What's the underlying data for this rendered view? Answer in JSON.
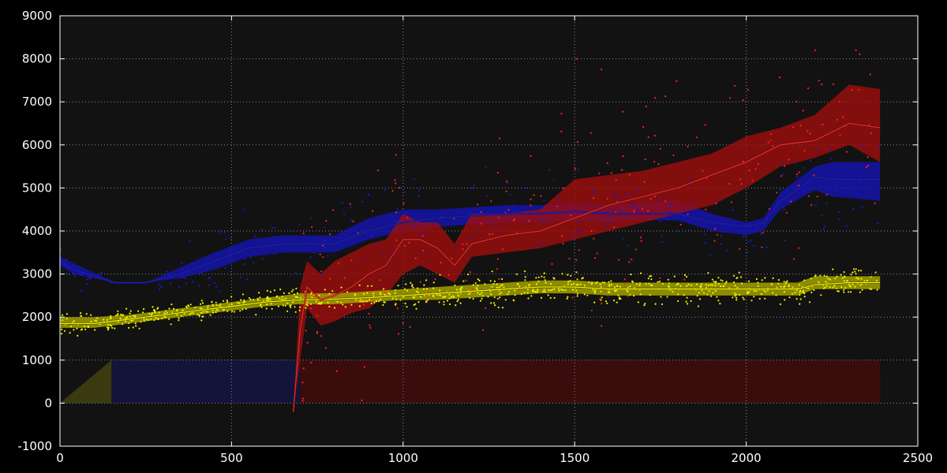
{
  "chart_data": {
    "type": "line",
    "title": "",
    "xlabel": "",
    "ylabel": "",
    "xlim": [
      0,
      2500
    ],
    "ylim": [
      -1000,
      9000
    ],
    "x_ticks": [
      0,
      500,
      1000,
      1500,
      2000,
      2500
    ],
    "y_ticks": [
      -1000,
      0,
      1000,
      2000,
      3000,
      4000,
      5000,
      6000,
      7000,
      8000,
      9000
    ],
    "grid": true,
    "legend": "none",
    "colors": {
      "background": "#000000",
      "plot_background": "#121212",
      "grid": "#8a8a8a",
      "text": "#ffffff",
      "yellow": "#f4f400",
      "yellow_band": "#a2a200",
      "blue": "#1a1ad8",
      "blue_band": "#1414b4",
      "red": "#ff2222",
      "red_band": "#a00e0e",
      "yellow_area": "#3a3a10",
      "blue_area": "#14143a",
      "red_area": "#3a0c0c"
    },
    "series": [
      {
        "color_key": "yellow",
        "x": [
          0,
          100,
          200,
          300,
          400,
          500,
          600,
          700,
          750,
          800,
          900,
          1000,
          1100,
          1200,
          1300,
          1400,
          1500,
          1600,
          1700,
          1800,
          1900,
          2000,
          2100,
          2150,
          2200,
          2300,
          2390
        ],
        "mean": [
          1850,
          1850,
          1950,
          2050,
          2150,
          2250,
          2350,
          2400,
          2400,
          2420,
          2450,
          2500,
          2550,
          2600,
          2650,
          2700,
          2700,
          2650,
          2650,
          2650,
          2650,
          2650,
          2650,
          2650,
          2750,
          2800,
          2800
        ],
        "lower": [
          1750,
          1750,
          1850,
          1950,
          2050,
          2150,
          2250,
          2300,
          2300,
          2300,
          2350,
          2400,
          2400,
          2450,
          2500,
          2550,
          2550,
          2500,
          2500,
          2500,
          2500,
          2500,
          2500,
          2500,
          2650,
          2650,
          2650
        ],
        "upper": [
          2000,
          2000,
          2050,
          2150,
          2250,
          2350,
          2450,
          2550,
          2550,
          2550,
          2600,
          2650,
          2700,
          2750,
          2800,
          2850,
          2850,
          2800,
          2800,
          2800,
          2800,
          2800,
          2800,
          2800,
          2950,
          2950,
          2950
        ]
      },
      {
        "color_key": "blue",
        "x": [
          0,
          40,
          160,
          250,
          350,
          450,
          550,
          650,
          800,
          900,
          1000,
          1100,
          1200,
          1300,
          1400,
          1500,
          1600,
          1700,
          1800,
          1900,
          2000,
          2050,
          2100,
          2200,
          2250,
          2390
        ],
        "mean": [
          3300,
          3100,
          2800,
          2800,
          3000,
          3300,
          3600,
          3700,
          3700,
          4000,
          4200,
          4300,
          4350,
          4400,
          4400,
          4450,
          4400,
          4400,
          4400,
          4200,
          4100,
          4200,
          4700,
          5250,
          5200,
          5200
        ],
        "lower": [
          3200,
          3000,
          2800,
          2800,
          2900,
          3100,
          3400,
          3500,
          3500,
          3800,
          4000,
          4100,
          4150,
          4200,
          4200,
          4250,
          4200,
          4250,
          4250,
          4000,
          3900,
          4000,
          4500,
          4950,
          4800,
          4700
        ],
        "upper": [
          3400,
          3250,
          2800,
          2800,
          3150,
          3500,
          3800,
          3900,
          3900,
          4300,
          4500,
          4500,
          4550,
          4600,
          4600,
          4650,
          4600,
          4650,
          4700,
          4400,
          4200,
          4300,
          4900,
          5500,
          5600,
          5600
        ]
      },
      {
        "color_key": "red",
        "x": [
          680,
          700,
          720,
          760,
          800,
          850,
          900,
          950,
          1000,
          1050,
          1100,
          1150,
          1200,
          1300,
          1400,
          1500,
          1600,
          1700,
          1800,
          1900,
          2000,
          2100,
          2200,
          2300,
          2390
        ],
        "mean": [
          -200,
          1700,
          2700,
          2400,
          2500,
          2700,
          3000,
          3200,
          3800,
          3800,
          3600,
          3200,
          3700,
          3900,
          4000,
          4300,
          4600,
          4800,
          5000,
          5300,
          5600,
          6000,
          6100,
          6500,
          6400
        ],
        "lower": [
          -200,
          1000,
          2200,
          1800,
          1900,
          2100,
          2200,
          2500,
          3000,
          3200,
          3000,
          2800,
          3400,
          3500,
          3600,
          3800,
          4000,
          4200,
          4400,
          4600,
          5000,
          5500,
          5700,
          6000,
          5600
        ],
        "upper": [
          -200,
          2700,
          3300,
          3000,
          3300,
          3500,
          3700,
          3800,
          4400,
          4200,
          4200,
          3700,
          4400,
          4400,
          4500,
          5200,
          5300,
          5400,
          5600,
          5800,
          6200,
          6400,
          6700,
          7400,
          7300
        ]
      }
    ],
    "areas": [
      {
        "color_key": "yellow_area",
        "x": [
          0,
          150,
          600,
          700,
          800,
          900,
          1000,
          1100,
          1200,
          1300,
          1400,
          1500,
          1600,
          1700,
          1800,
          1900,
          2000,
          2100,
          2150,
          2200,
          2300,
          2390
        ],
        "top": [
          0,
          1000,
          1000,
          950,
          700,
          500,
          650,
          850,
          800,
          500,
          600,
          800,
          550,
          300,
          300,
          200,
          200,
          150,
          100,
          150,
          400,
          700
        ]
      },
      {
        "color_key": "blue_area",
        "x": [
          150,
          600,
          700,
          800,
          900,
          1000,
          1100,
          1200,
          1300,
          1400,
          1500,
          1600,
          1700,
          1800,
          1900,
          2000,
          2100,
          2150,
          2200,
          2300,
          2390
        ],
        "top": [
          1000,
          1000,
          1000,
          1000,
          1000,
          1000,
          1000,
          1000,
          1000,
          1000,
          1000,
          1000,
          700,
          400,
          300,
          250,
          200,
          150,
          200,
          450,
          750
        ]
      },
      {
        "color_key": "red_area",
        "x": [
          700,
          2390
        ],
        "top": [
          1000,
          1000
        ]
      }
    ],
    "scatter": [
      {
        "color_key": "yellow",
        "density": "dense",
        "x_range": [
          0,
          2390
        ]
      },
      {
        "color_key": "blue",
        "density": "sparse",
        "x_range": [
          0,
          2390
        ]
      },
      {
        "color_key": "red",
        "density": "sparse",
        "x_range": [
          700,
          2390
        ]
      }
    ]
  }
}
